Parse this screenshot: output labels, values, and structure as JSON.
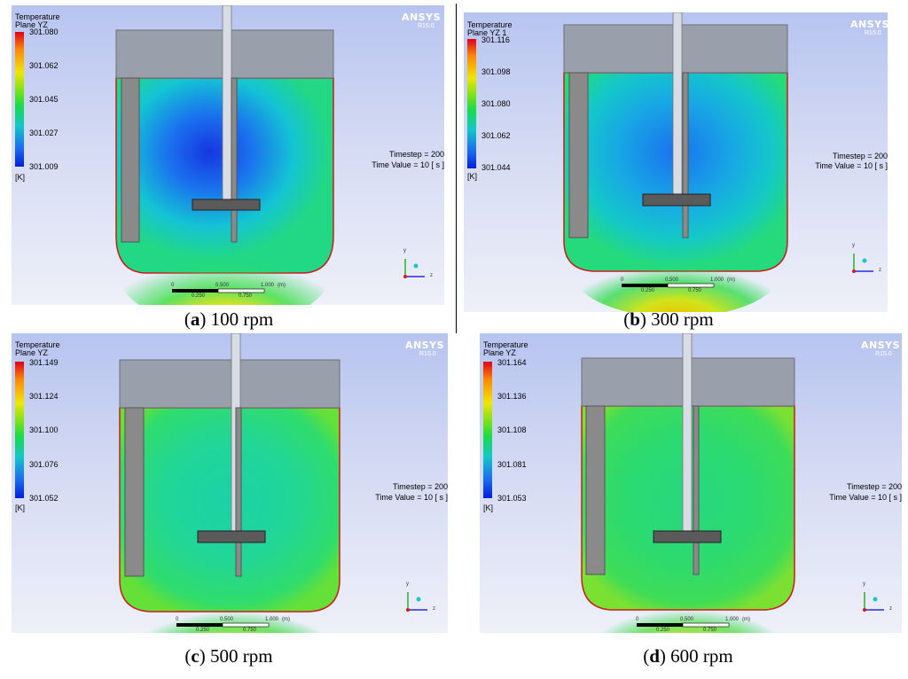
{
  "panels": [
    {
      "legend_title": "Temperature",
      "legend_plane": "Plane YZ",
      "ticks": [
        "301.080",
        "301.062",
        "301.045",
        "301.027",
        "301.009"
      ],
      "unit": "[K]",
      "brand": "ANSYS",
      "version": "R15.0",
      "timestep": "Timestep = 200",
      "time_value": "Time Value = 10 [ s ]",
      "scale_top": [
        "0",
        "0.500",
        "1.000",
        "(m)"
      ],
      "scale_bottom": [
        "0.250",
        "0.750"
      ],
      "axis_y": "y",
      "axis_z": "z",
      "caption_letter": "a",
      "caption_text": "100 rpm",
      "field": "cold"
    },
    {
      "legend_title": "Temperature",
      "legend_plane": "Plane YZ 1",
      "ticks": [
        "301.116",
        "301.098",
        "301.080",
        "301.062",
        "301.044"
      ],
      "unit": "[K]",
      "brand": "ANSYS",
      "version": "R15.0",
      "timestep": "Timestep = 200",
      "time_value": "Time Value = 10 [ s ]",
      "scale_top": [
        "0",
        "0.500",
        "1.000",
        "(m)"
      ],
      "scale_bottom": [
        "0.250",
        "0.750"
      ],
      "axis_y": "y",
      "axis_z": "z",
      "caption_letter": "b",
      "caption_text": "300 rpm",
      "field": "cool"
    },
    {
      "legend_title": "Temperature",
      "legend_plane": "Plane YZ",
      "ticks": [
        "301.149",
        "301.124",
        "301.100",
        "301.076",
        "301.052"
      ],
      "unit": "[K]",
      "brand": "ANSYS",
      "version": "R15.0",
      "timestep": "Timestep = 200",
      "time_value": "Time Value = 10 [ s ]",
      "scale_top": [
        "0",
        "0.500",
        "1.000",
        "(m)"
      ],
      "scale_bottom": [
        "0.250",
        "0.750"
      ],
      "axis_y": "y",
      "axis_z": "z",
      "caption_letter": "c",
      "caption_text": "500 rpm",
      "field": "mid"
    },
    {
      "legend_title": "Temperature",
      "legend_plane": "Plane YZ",
      "ticks": [
        "301.164",
        "301.136",
        "301.108",
        "301.081",
        "301.053"
      ],
      "unit": "[K]",
      "brand": "ANSYS",
      "version": "R15.0",
      "timestep": "Timestep = 200",
      "time_value": "Time Value = 10 [ s ]",
      "scale_top": [
        "0",
        "0.500",
        "1.000",
        "(m)"
      ],
      "scale_bottom": [
        "0.250",
        "0.750"
      ],
      "axis_y": "y",
      "axis_z": "z",
      "caption_letter": "d",
      "caption_text": "600 rpm",
      "field": "warm"
    }
  ],
  "colors": {
    "tank_outline": "#cc1a1a",
    "lid": "#9aa0ab",
    "baffle": "#8a8a8a",
    "hot": "#ffb000",
    "cold_core": "#1a56e8",
    "mid_green": "#2adc68",
    "cyan": "#1ecfd0"
  }
}
